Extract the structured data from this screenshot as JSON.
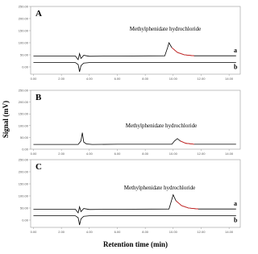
{
  "figure": {
    "ylabel": "Signal (mV)",
    "xlabel": "Retention time (min)"
  },
  "chart_data": [
    {
      "type": "line",
      "label": "A",
      "annotation": "Methylphenidate hydrochloride",
      "xlim": [
        -0.2,
        14.8
      ],
      "ylim": [
        -30,
        250
      ],
      "xticks": [
        {
          "value": 0,
          "label": "0.00"
        },
        {
          "value": 2,
          "label": "2.00"
        },
        {
          "value": 4,
          "label": "4.00"
        },
        {
          "value": 6,
          "label": "6.00"
        },
        {
          "value": 8,
          "label": "8.00"
        },
        {
          "value": 10,
          "label": "10.00"
        },
        {
          "value": 12,
          "label": "12.00"
        },
        {
          "value": 14,
          "label": "14.00"
        }
      ],
      "yticks": [
        {
          "value": 0,
          "label": "0.00"
        },
        {
          "value": 50,
          "label": "50.00"
        },
        {
          "value": 100,
          "label": "100.00"
        },
        {
          "value": 150,
          "label": "150.00"
        },
        {
          "value": 200,
          "label": "200.00"
        },
        {
          "value": 250,
          "label": "250.00"
        }
      ],
      "series": [
        {
          "name": "a",
          "color": "#000000",
          "x": [
            0,
            3.0,
            3.2,
            3.3,
            3.4,
            3.6,
            4.0,
            6,
            9.4,
            9.6,
            9.7,
            9.9,
            10.3,
            10.8,
            11.5,
            14.5
          ],
          "values": [
            45,
            45,
            30,
            55,
            35,
            48,
            44,
            45,
            46,
            80,
            100,
            80,
            60,
            50,
            46,
            46
          ]
        },
        {
          "color": "#e02020",
          "x": [
            9.9,
            10.3,
            10.8,
            11.5
          ],
          "values": [
            80,
            60,
            50,
            46
          ]
        },
        {
          "name": "b",
          "color": "#000000",
          "x": [
            0,
            3.0,
            3.2,
            3.3,
            3.4,
            3.6,
            4.0,
            14.5
          ],
          "values": [
            18,
            18,
            10,
            -20,
            5,
            16,
            18,
            18
          ]
        }
      ]
    },
    {
      "type": "line",
      "label": "B",
      "annotation": "Methylphenidate hydrochloride",
      "xlim": [
        -0.2,
        14.8
      ],
      "ylim": [
        0,
        250
      ],
      "xticks": [
        {
          "value": 0,
          "label": "0.00"
        },
        {
          "value": 2,
          "label": "2.00"
        },
        {
          "value": 4,
          "label": "4.00"
        },
        {
          "value": 6,
          "label": "6.00"
        },
        {
          "value": 8,
          "label": "8.00"
        },
        {
          "value": 10,
          "label": "10.00"
        },
        {
          "value": 12,
          "label": "12.00"
        },
        {
          "value": 14,
          "label": "14.00"
        }
      ],
      "yticks": [
        {
          "value": 0,
          "label": "0.00"
        },
        {
          "value": 50,
          "label": "50.00"
        },
        {
          "value": 100,
          "label": "100.00"
        },
        {
          "value": 150,
          "label": "150.00"
        },
        {
          "value": 200,
          "label": "200.00"
        },
        {
          "value": 250,
          "label": "250.00"
        }
      ],
      "series": [
        {
          "color": "#000000",
          "x": [
            0,
            3.2,
            3.4,
            3.5,
            3.6,
            3.8,
            4.2,
            6,
            9.9,
            10.1,
            10.3,
            10.5,
            10.9,
            11.5,
            14.5
          ],
          "values": [
            20,
            20,
            35,
            70,
            30,
            22,
            20,
            21,
            21,
            35,
            45,
            35,
            25,
            21,
            21
          ]
        },
        {
          "color": "#e02020",
          "x": [
            10.5,
            10.9,
            11.5
          ],
          "values": [
            35,
            25,
            21
          ]
        }
      ]
    },
    {
      "type": "line",
      "label": "C",
      "annotation": "Methylphenidate hydrochloride",
      "xlim": [
        -0.2,
        14.8
      ],
      "ylim": [
        -30,
        250
      ],
      "xticks": [
        {
          "value": 0,
          "label": "0.00"
        },
        {
          "value": 2,
          "label": "2.00"
        },
        {
          "value": 4,
          "label": "4.00"
        },
        {
          "value": 6,
          "label": "6.00"
        },
        {
          "value": 8,
          "label": "8.00"
        },
        {
          "value": 10,
          "label": "10.00"
        },
        {
          "value": 12,
          "label": "12.00"
        },
        {
          "value": 14,
          "label": "14.00"
        }
      ],
      "yticks": [
        {
          "value": 0,
          "label": "0.00"
        },
        {
          "value": 50,
          "label": "50.00"
        },
        {
          "value": 100,
          "label": "100.00"
        },
        {
          "value": 150,
          "label": "150.00"
        },
        {
          "value": 200,
          "label": "200.00"
        },
        {
          "value": 250,
          "label": "250.00"
        }
      ],
      "series": [
        {
          "name": "a",
          "color": "#000000",
          "x": [
            0,
            3.0,
            3.2,
            3.3,
            3.4,
            3.6,
            4.0,
            6,
            9.7,
            9.9,
            10.0,
            10.2,
            10.6,
            11.1,
            11.8,
            14.5
          ],
          "values": [
            45,
            45,
            30,
            55,
            35,
            48,
            44,
            45,
            46,
            85,
            105,
            80,
            60,
            50,
            46,
            46
          ]
        },
        {
          "color": "#e02020",
          "x": [
            10.2,
            10.6,
            11.1,
            11.8
          ],
          "values": [
            80,
            60,
            50,
            46
          ]
        },
        {
          "name": "b",
          "color": "#000000",
          "x": [
            0,
            3.0,
            3.2,
            3.3,
            3.4,
            3.6,
            4.0,
            14.5
          ],
          "values": [
            18,
            18,
            10,
            -20,
            5,
            16,
            18,
            18
          ]
        }
      ]
    }
  ]
}
